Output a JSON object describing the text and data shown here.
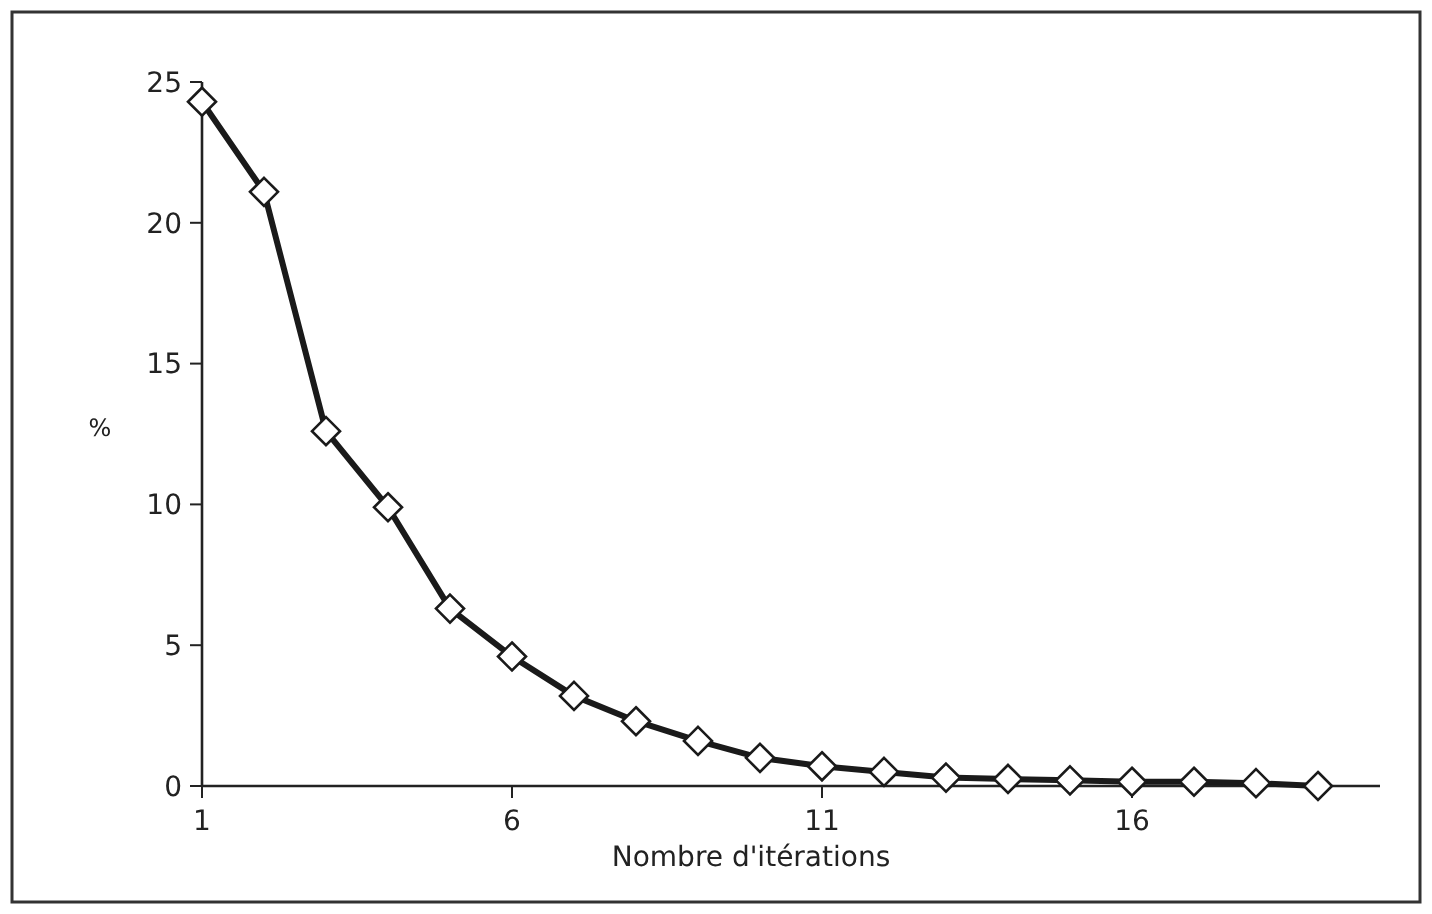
{
  "chart_data": {
    "type": "line",
    "xlabel": "Nombre d'itérations",
    "ylabel": "%",
    "x": [
      1,
      2,
      3,
      4,
      5,
      6,
      7,
      8,
      9,
      10,
      11,
      12,
      13,
      14,
      15,
      16,
      17,
      18,
      19
    ],
    "series": [
      {
        "color": "#1a1a1a",
        "values": [
          24.3,
          21.1,
          12.6,
          9.9,
          6.3,
          4.6,
          3.2,
          2.3,
          1.6,
          1.0,
          0.7,
          0.5,
          0.3,
          0.25,
          0.2,
          0.15,
          0.15,
          0.1,
          0.0
        ]
      }
    ],
    "xlim": [
      1,
      20
    ],
    "xticks": [
      1,
      6,
      11,
      16
    ],
    "ylim": [
      0,
      25
    ],
    "yticks": [
      0,
      5,
      10,
      15,
      20,
      25
    ],
    "marker": "diamond",
    "line_style": "solid"
  }
}
